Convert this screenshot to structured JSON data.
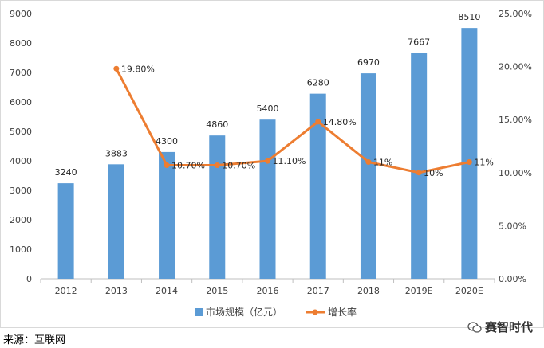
{
  "chart_data": {
    "type": "bar+line",
    "categories": [
      "2012",
      "2013",
      "2014",
      "2015",
      "2016",
      "2017",
      "2018",
      "2019E",
      "2020E"
    ],
    "series": [
      {
        "name": "市场规模（亿元）",
        "type": "bar",
        "axis": "left",
        "color": "#5B9BD5",
        "values": [
          3240,
          3883,
          4300,
          4860,
          5400,
          6280,
          6970,
          7667,
          8510
        ],
        "labels": [
          "3240",
          "3883",
          "4300",
          "4860",
          "5400",
          "6280",
          "6970",
          "7667",
          "8510"
        ]
      },
      {
        "name": "增长率",
        "type": "line",
        "axis": "right",
        "color": "#ED7D31",
        "values": [
          null,
          19.8,
          10.7,
          10.7,
          11.1,
          14.8,
          11,
          10,
          11
        ],
        "labels": [
          null,
          "19.80%",
          "10.70%",
          "10.70%",
          "11.10%",
          "14.80%",
          "11%",
          "10%",
          "11%"
        ]
      }
    ],
    "y_left": {
      "min": 0,
      "max": 9000,
      "ticks": [
        0,
        1000,
        2000,
        3000,
        4000,
        5000,
        6000,
        7000,
        8000,
        9000
      ]
    },
    "y_right": {
      "min": 0,
      "max": 25,
      "ticks": [
        0,
        5,
        10,
        15,
        20,
        25
      ],
      "tick_labels": [
        "0.00%",
        "5.00%",
        "10.00%",
        "15.00%",
        "20.00%",
        "25.00%"
      ]
    },
    "grid": false,
    "legend_position": "bottom"
  },
  "source_text": "来源：互联网",
  "watermark_text": "赛智时代"
}
